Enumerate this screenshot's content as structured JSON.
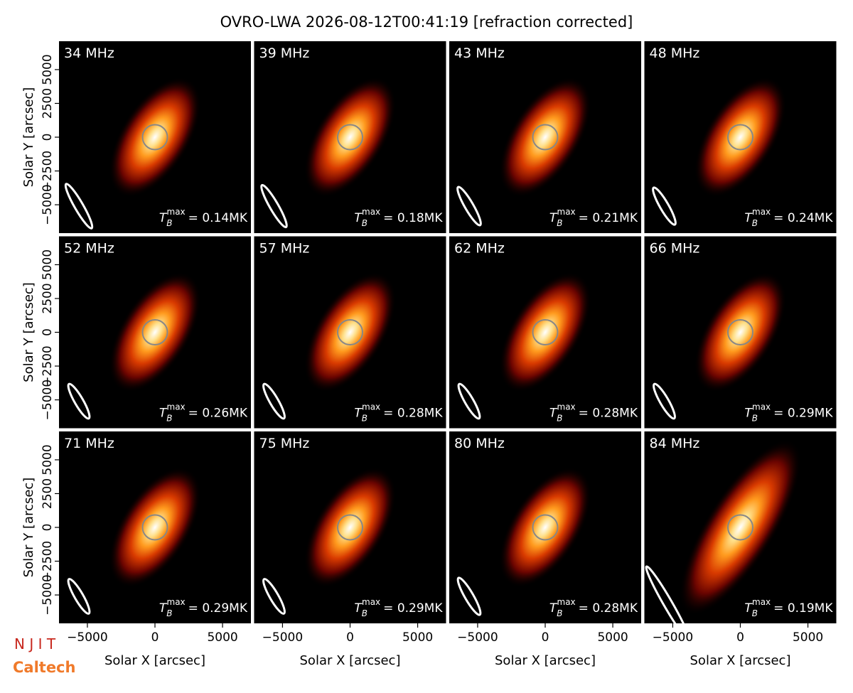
{
  "title": "OVRO-LWA 2026-08-12T00:41:19 [refraction corrected]",
  "logos": [
    "N J I T",
    "Caltech"
  ],
  "chart_data": [
    {
      "type": "image",
      "title": "34 MHz",
      "tb_symbol": "T",
      "tb_sub": "B",
      "tb_sup": "max",
      "tb_value": "= 0.14MK",
      "xlim": [
        -7100,
        7100
      ],
      "ylim": [
        -7100,
        7100
      ],
      "ylabel": "Solar Y [arcsec]",
      "yticks": [
        {
          "value": -5000,
          "label": "−5000"
        },
        {
          "value": -2500,
          "label": "−2500"
        },
        0,
        2500,
        5000
      ]
    },
    {
      "type": "image",
      "title": "39 MHz",
      "tb_symbol": "T",
      "tb_sub": "B",
      "tb_sup": "max",
      "tb_value": "= 0.18MK",
      "xlim": [
        -7100,
        7100
      ],
      "ylim": [
        -7100,
        7100
      ]
    },
    {
      "type": "image",
      "title": "43 MHz",
      "tb_symbol": "T",
      "tb_sub": "B",
      "tb_sup": "max",
      "tb_value": "= 0.21MK",
      "xlim": [
        -7100,
        7100
      ],
      "ylim": [
        -7100,
        7100
      ]
    },
    {
      "type": "image",
      "title": "48 MHz",
      "tb_symbol": "T",
      "tb_sub": "B",
      "tb_sup": "max",
      "tb_value": "= 0.24MK",
      "xlim": [
        -7100,
        7100
      ],
      "ylim": [
        -7100,
        7100
      ]
    },
    {
      "type": "image",
      "title": "52 MHz",
      "tb_symbol": "T",
      "tb_sub": "B",
      "tb_sup": "max",
      "tb_value": "= 0.26MK",
      "xlim": [
        -7100,
        7100
      ],
      "ylim": [
        -7100,
        7100
      ],
      "ylabel": "Solar Y [arcsec]",
      "yticks": [
        {
          "value": -5000,
          "label": "−5000"
        },
        {
          "value": -2500,
          "label": "−2500"
        },
        0,
        2500,
        5000
      ]
    },
    {
      "type": "image",
      "title": "57 MHz",
      "tb_symbol": "T",
      "tb_sub": "B",
      "tb_sup": "max",
      "tb_value": "= 0.28MK",
      "xlim": [
        -7100,
        7100
      ],
      "ylim": [
        -7100,
        7100
      ]
    },
    {
      "type": "image",
      "title": "62 MHz",
      "tb_symbol": "T",
      "tb_sub": "B",
      "tb_sup": "max",
      "tb_value": "= 0.28MK",
      "xlim": [
        -7100,
        7100
      ],
      "ylim": [
        -7100,
        7100
      ]
    },
    {
      "type": "image",
      "title": "66 MHz",
      "tb_symbol": "T",
      "tb_sub": "B",
      "tb_sup": "max",
      "tb_value": "= 0.29MK",
      "xlim": [
        -7100,
        7100
      ],
      "ylim": [
        -7100,
        7100
      ]
    },
    {
      "type": "image",
      "title": "71 MHz",
      "tb_symbol": "T",
      "tb_sub": "B",
      "tb_sup": "max",
      "tb_value": "= 0.29MK",
      "xlim": [
        -7100,
        7100
      ],
      "ylim": [
        -7100,
        7100
      ],
      "ylabel": "Solar Y [arcsec]",
      "yticks": [
        {
          "value": -5000,
          "label": "−5000"
        },
        {
          "value": -2500,
          "label": "−2500"
        },
        0,
        2500,
        5000
      ],
      "xlabel": "Solar X [arcsec]",
      "xticks": [
        {
          "value": -5000,
          "label": "−5000"
        },
        0,
        5000
      ]
    },
    {
      "type": "image",
      "title": "75 MHz",
      "tb_symbol": "T",
      "tb_sub": "B",
      "tb_sup": "max",
      "tb_value": "= 0.29MK",
      "xlim": [
        -7100,
        7100
      ],
      "ylim": [
        -7100,
        7100
      ],
      "xlabel": "Solar X [arcsec]",
      "xticks": [
        {
          "value": -5000,
          "label": "−5000"
        },
        0,
        5000
      ]
    },
    {
      "type": "image",
      "title": "80 MHz",
      "tb_symbol": "T",
      "tb_sub": "B",
      "tb_sup": "max",
      "tb_value": "= 0.28MK",
      "xlim": [
        -7100,
        7100
      ],
      "ylim": [
        -7100,
        7100
      ],
      "xlabel": "Solar X [arcsec]",
      "xticks": [
        {
          "value": -5000,
          "label": "−5000"
        },
        0,
        5000
      ]
    },
    {
      "type": "image",
      "title": "84 MHz",
      "tb_symbol": "T",
      "tb_sub": "B",
      "tb_sup": "max",
      "tb_value": "= 0.19MK",
      "xlim": [
        -7100,
        7100
      ],
      "ylim": [
        -7100,
        7100
      ],
      "xlabel": "Solar X [arcsec]",
      "xticks": [
        {
          "value": -5000,
          "label": "−5000"
        },
        0,
        5000
      ]
    }
  ]
}
